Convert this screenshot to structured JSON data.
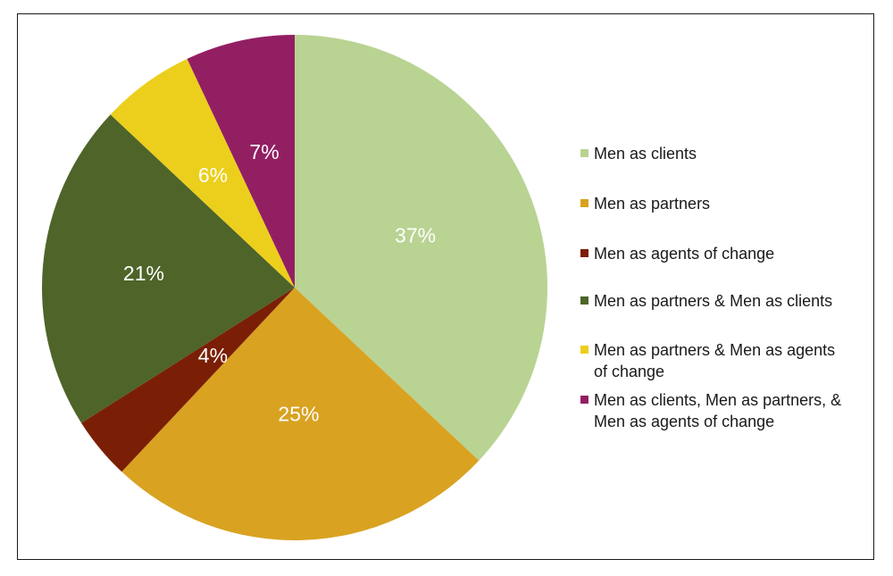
{
  "chart_data": {
    "type": "pie",
    "categories": [
      "Men as clients",
      "Men as partners",
      "Men as agents of change",
      "Men as partners & Men as clients",
      "Men as partners & Men as agents of change",
      "Men as clients, Men as partners, & Men as agents of change"
    ],
    "values": [
      37,
      25,
      4,
      21,
      6,
      7
    ],
    "value_labels": [
      "37%",
      "25%",
      "4%",
      "21%",
      "6%",
      "7%"
    ],
    "colors": [
      "#b9d393",
      "#d9a221",
      "#7a1f05",
      "#4e6429",
      "#eccf1c",
      "#931f63"
    ],
    "start_angle": "12 o'clock",
    "direction": "clockwise",
    "legend_position": "right"
  },
  "legend": [
    {
      "lines": [
        "Men as clients"
      ],
      "color": "#b9d393"
    },
    {
      "lines": [
        "Men as partners"
      ],
      "color": "#d9a221"
    },
    {
      "lines": [
        "Men as agents of change"
      ],
      "color": "#7a1f05"
    },
    {
      "lines": [
        "Men as partners & Men as clients"
      ],
      "color": "#4e6429"
    },
    {
      "lines": [
        "Men as partners & Men as agents",
        "of change"
      ],
      "color": "#eccf1c"
    },
    {
      "lines": [
        "Men as clients, Men as partners, &",
        "Men as agents of change"
      ],
      "color": "#931f63"
    }
  ]
}
